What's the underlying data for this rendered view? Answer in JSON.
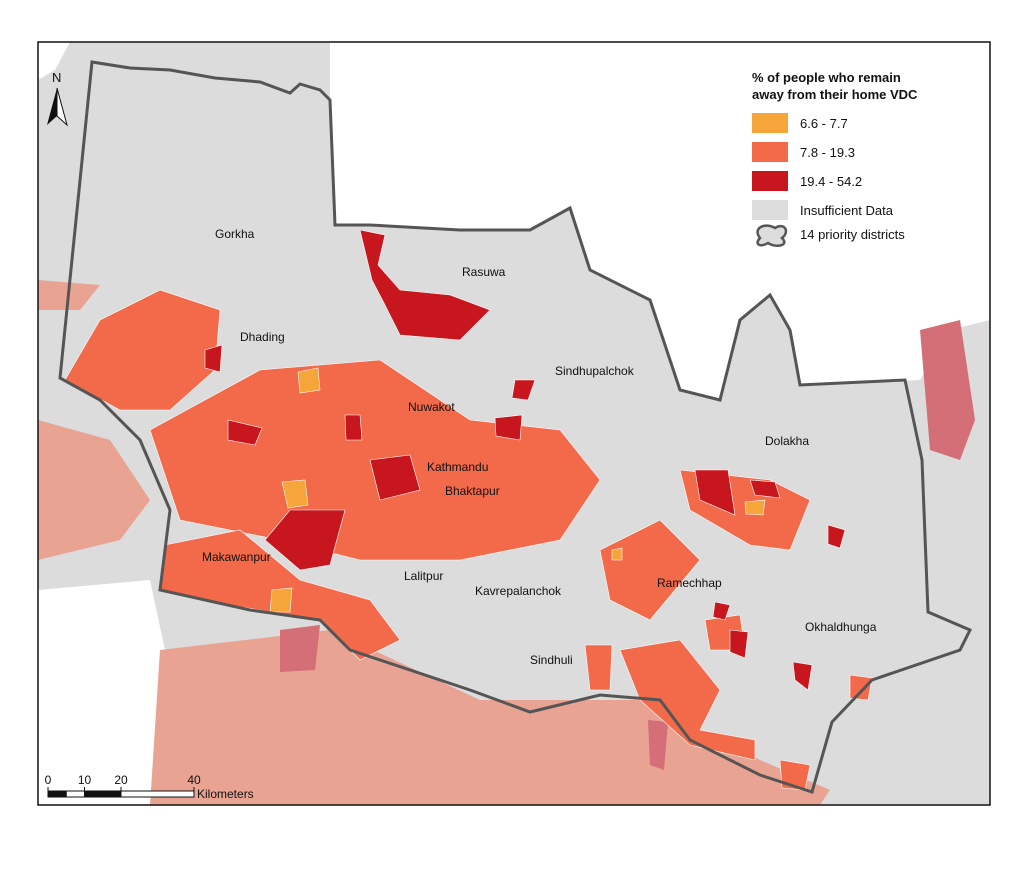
{
  "title_lines": [
    "% of people who remain",
    "away from their home VDC"
  ],
  "legend": {
    "items": [
      {
        "label": "6.6 - 7.7",
        "color": "#f5a53a"
      },
      {
        "label": "7.8 - 19.3",
        "color": "#f26a4a"
      },
      {
        "label": "19.4 - 54.2",
        "color": "#c8161e"
      },
      {
        "label": "Insufficient Data",
        "color": "#dddddd"
      }
    ],
    "boundary_label": "14 priority districts"
  },
  "districts": [
    "Gorkha",
    "Rasuwa",
    "Dhading",
    "Sindhupalchok",
    "Nuwakot",
    "Dolakha",
    "Kathmandu",
    "Bhaktapur",
    "Makawanpur",
    "Lalitpur",
    "Kavrepalanchok",
    "Ramechhap",
    "Okhaldhunga",
    "Sindhuli"
  ],
  "north": "N",
  "scale": {
    "ticks": [
      0,
      10,
      20,
      40
    ],
    "unit": "Kilometers"
  }
}
